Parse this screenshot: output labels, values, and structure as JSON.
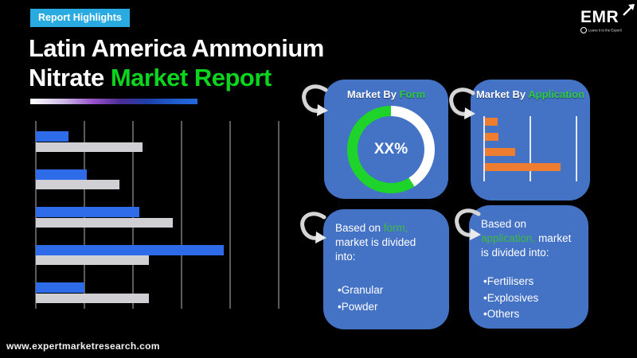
{
  "badge": {
    "label": "Report Highlights"
  },
  "title": {
    "line1": "Latin America Ammonium",
    "line2_white": "Nitrate ",
    "line2_green": "Market Report"
  },
  "logo": {
    "name": "EMR",
    "tagline": "Leave it to the Expert!"
  },
  "footer": {
    "url": "www.expertmarketresearch.com"
  },
  "colors": {
    "background": "#000000",
    "badge_bg": "#29ABE2",
    "title_green": "#0BD51C",
    "panel_blue": "#4472C4",
    "bar_blue": "#2D6BE8",
    "bar_gray": "#CFCFD4",
    "orange": "#ED7D31",
    "donut_green": "#1ED32A",
    "panel_text_green": "#3DBB44",
    "gridline_gray": "#5B5B5B"
  },
  "chart_data": [
    {
      "id": "main-horizontal-bar-chart",
      "type": "bar",
      "orientation": "horizontal",
      "title": "",
      "categories": [
        "group-1",
        "group-2",
        "group-3",
        "group-4",
        "group-5"
      ],
      "series": [
        {
          "name": "series-blue",
          "color": "#2D6BE8",
          "values": [
            0.67,
            1.05,
            2.13,
            3.87,
            1.0
          ]
        },
        {
          "name": "series-gray",
          "color": "#CFCFD4",
          "values": [
            2.2,
            1.72,
            2.82,
            2.33,
            2.33
          ]
        }
      ],
      "xlim": [
        0,
        5
      ],
      "gridlines": 6,
      "axis_labels_visible": false,
      "legend": "none"
    },
    {
      "id": "market-by-form-donut",
      "type": "pie",
      "title_white": "Market By ",
      "title_green": "Form",
      "center_label": "XX%",
      "segments": [
        {
          "name": "remainder",
          "value": 41,
          "color": "#FFFFFF"
        },
        {
          "name": "share",
          "value": 59,
          "color": "#1ED32A"
        }
      ],
      "legend": "none"
    },
    {
      "id": "market-by-application-bar",
      "type": "bar",
      "orientation": "horizontal",
      "title_white": "Market By ",
      "title_green": "Application",
      "categories": [
        "bar-1",
        "bar-2",
        "bar-3",
        "bar-4"
      ],
      "values": [
        0.28,
        0.31,
        0.66,
        1.65
      ],
      "color": "#ED7D31",
      "xlim": [
        0,
        2
      ],
      "gridlines": 3,
      "axis_labels_visible": false,
      "legend": "none"
    }
  ],
  "panels": {
    "form_detail": {
      "prefix": "Based on ",
      "highlight": "form,",
      "suffix": " market is divided into:",
      "items": [
        "•Granular",
        "•Powder"
      ]
    },
    "application_detail": {
      "prefix": "Based on ",
      "highlight": "application,",
      "suffix": " market is divided into:",
      "items": [
        "•Fertilisers",
        "•Explosives",
        "•Others"
      ]
    }
  }
}
